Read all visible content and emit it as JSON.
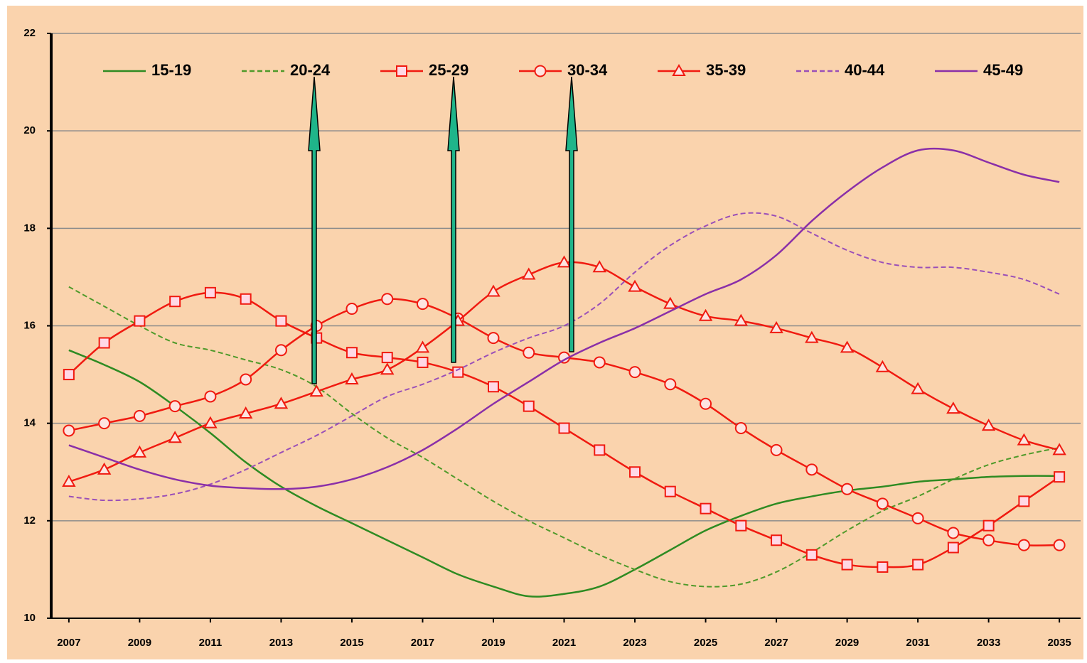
{
  "chart_data": {
    "type": "line",
    "x": [
      2007,
      2008,
      2009,
      2010,
      2011,
      2012,
      2013,
      2014,
      2015,
      2016,
      2017,
      2018,
      2019,
      2020,
      2021,
      2022,
      2023,
      2024,
      2025,
      2026,
      2027,
      2028,
      2029,
      2030,
      2031,
      2032,
      2033,
      2034,
      2035
    ],
    "xlim": [
      2006.5,
      2035.6
    ],
    "xticks": [
      2007,
      2009,
      2011,
      2013,
      2015,
      2017,
      2019,
      2021,
      2023,
      2025,
      2027,
      2029,
      2031,
      2033,
      2035
    ],
    "ylim": [
      10,
      22
    ],
    "yticks": [
      10,
      12,
      14,
      16,
      18,
      20,
      22
    ],
    "grid": true,
    "legend": "top",
    "series": [
      {
        "name": "15-19",
        "color": "#2e8b22",
        "dash": "solid",
        "marker": "none",
        "values": [
          15.5,
          15.2,
          14.85,
          14.35,
          13.8,
          13.2,
          12.7,
          12.3,
          11.95,
          11.6,
          11.25,
          10.9,
          10.65,
          10.45,
          10.5,
          10.65,
          11.0,
          11.4,
          11.8,
          12.1,
          12.35,
          12.5,
          12.62,
          12.7,
          12.8,
          12.85,
          12.9,
          12.92,
          12.92
        ]
      },
      {
        "name": "20-24",
        "color": "#4f9a2a",
        "dash": "dashed",
        "marker": "none",
        "values": [
          16.8,
          16.4,
          16.0,
          15.65,
          15.5,
          15.3,
          15.1,
          14.75,
          14.2,
          13.7,
          13.3,
          12.85,
          12.4,
          12.0,
          11.65,
          11.3,
          11.0,
          10.75,
          10.65,
          10.7,
          10.95,
          11.35,
          11.8,
          12.2,
          12.5,
          12.85,
          13.15,
          13.35,
          13.5
        ]
      },
      {
        "name": "25-29",
        "color": "#f01a10",
        "dash": "solid",
        "marker": "square",
        "values": [
          15.0,
          15.65,
          16.1,
          16.5,
          16.68,
          16.55,
          16.1,
          15.75,
          15.45,
          15.35,
          15.25,
          15.05,
          14.75,
          14.35,
          13.9,
          13.45,
          13.0,
          12.6,
          12.25,
          11.9,
          11.6,
          11.3,
          11.1,
          11.05,
          11.1,
          11.45,
          11.9,
          12.4,
          12.9
        ]
      },
      {
        "name": "30-34",
        "color": "#f01a10",
        "dash": "solid",
        "marker": "circle",
        "values": [
          13.85,
          14.0,
          14.15,
          14.35,
          14.55,
          14.9,
          15.5,
          16.0,
          16.35,
          16.55,
          16.45,
          16.15,
          15.75,
          15.45,
          15.35,
          15.25,
          15.05,
          14.8,
          14.4,
          13.9,
          13.45,
          13.05,
          12.65,
          12.35,
          12.05,
          11.75,
          11.6,
          11.5,
          11.5
        ]
      },
      {
        "name": "35-39",
        "color": "#f01a10",
        "dash": "solid",
        "marker": "triangle",
        "values": [
          12.8,
          13.05,
          13.4,
          13.7,
          14.0,
          14.2,
          14.4,
          14.65,
          14.9,
          15.1,
          15.55,
          16.1,
          16.7,
          17.05,
          17.3,
          17.2,
          16.8,
          16.45,
          16.2,
          16.1,
          15.95,
          15.75,
          15.55,
          15.15,
          14.7,
          14.3,
          13.95,
          13.65,
          13.45
        ]
      },
      {
        "name": "40-44",
        "color": "#9a4fb8",
        "dash": "dashed",
        "marker": "none",
        "values": [
          12.5,
          12.42,
          12.45,
          12.55,
          12.75,
          13.05,
          13.4,
          13.75,
          14.15,
          14.55,
          14.8,
          15.1,
          15.45,
          15.75,
          16.0,
          16.45,
          17.1,
          17.65,
          18.05,
          18.3,
          18.25,
          17.9,
          17.55,
          17.3,
          17.2,
          17.2,
          17.1,
          16.95,
          16.65
        ]
      },
      {
        "name": "45-49",
        "color": "#8a2fa8",
        "dash": "solid",
        "marker": "none",
        "values": [
          13.55,
          13.3,
          13.05,
          12.85,
          12.72,
          12.67,
          12.65,
          12.7,
          12.85,
          13.1,
          13.45,
          13.9,
          14.4,
          14.85,
          15.3,
          15.65,
          15.95,
          16.3,
          16.65,
          16.95,
          17.45,
          18.15,
          18.75,
          19.25,
          19.6,
          19.6,
          19.35,
          19.1,
          18.95
        ]
      }
    ]
  }
}
